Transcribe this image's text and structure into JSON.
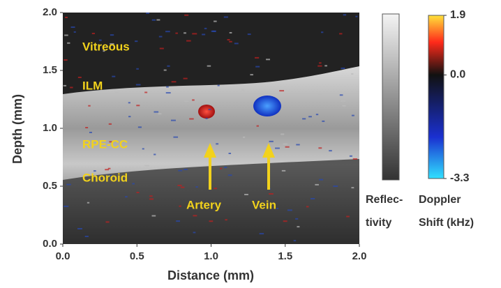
{
  "chart_data": {
    "type": "image",
    "xlabel": "Distance (mm)",
    "ylabel": "Depth (mm)",
    "xlim": [
      0,
      2
    ],
    "ylim": [
      0,
      2
    ],
    "xticks": [
      {
        "value": 0,
        "label": "0.0"
      },
      0.5,
      {
        "value": 1,
        "label": "1.0"
      },
      1.5,
      {
        "value": 2,
        "label": "2.0"
      }
    ],
    "yticks": [
      {
        "value": 0,
        "label": "0.0"
      },
      0.5,
      {
        "value": 1,
        "label": "1.0"
      },
      1.5,
      {
        "value": 2,
        "label": "2.0"
      }
    ],
    "annotations": [
      "Vitreous",
      "ILM",
      "RPE-CC",
      "Choroid",
      "Artery",
      "Vein"
    ],
    "colorbars": [
      {
        "label": [
          "Reflec-",
          "tivity"
        ]
      },
      {
        "label": [
          "Doppler",
          "Shift (kHz)"
        ],
        "clim": [
          -3.3,
          1.9
        ],
        "ticks": [
          1.9,
          {
            "value": 0,
            "label": "0.0"
          },
          -3.3
        ]
      }
    ]
  }
}
